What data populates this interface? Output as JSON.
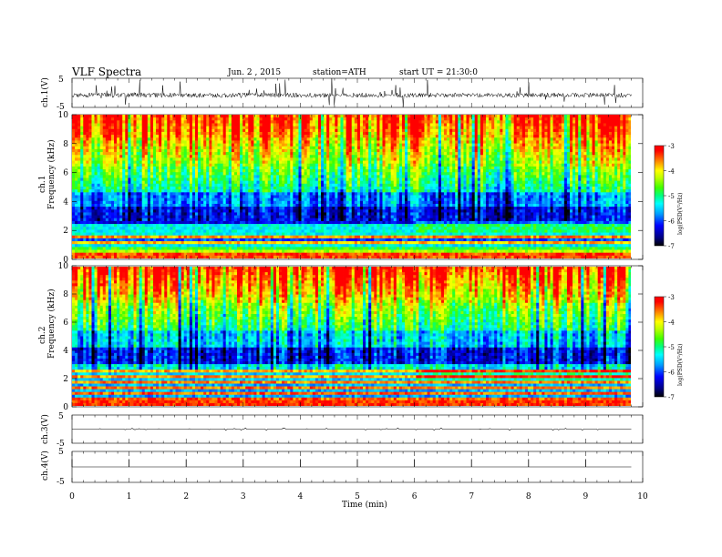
{
  "header": {
    "title": "VLF  Spectra",
    "date": "Jun. 2  , 2015",
    "station": "station=ATH",
    "start": "start  UT =    21:30:0"
  },
  "chart_data": [
    {
      "type": "line",
      "panel": "ch1-waveform",
      "ylabel": "ch.1(V)",
      "ylim": [
        -5,
        5
      ],
      "yticks": [
        "5",
        "-5"
      ],
      "baseline": -0.8,
      "noise_range": [
        -2.5,
        0.8
      ],
      "spike_range": [
        -5,
        5
      ],
      "xlim": [
        0,
        10
      ],
      "trace_end_min": 9.8
    },
    {
      "type": "heatmap",
      "panel": "ch1-spectrogram",
      "ylabel_top": "ch.1",
      "ylabel": "Frequency  (kHz)",
      "ylim": [
        0,
        10
      ],
      "yticks": [
        "0",
        "2",
        "4",
        "6",
        "8",
        "10"
      ],
      "xlim": [
        0,
        10
      ],
      "data_end_min": 9.8,
      "frequency_profile_kHz": [
        {
          "f": 0.5,
          "color": "red-green bands"
        },
        {
          "f": 1.5,
          "color": "cyan-green"
        },
        {
          "f": 2.8,
          "color": "blue"
        },
        {
          "f": 4.0,
          "color": "blue-cyan"
        },
        {
          "f": 6.0,
          "color": "green-yellow"
        },
        {
          "f": 8.0,
          "color": "yellow-orange"
        },
        {
          "f": 9.5,
          "color": "red"
        }
      ],
      "band_shift_at_min": 6.0
    },
    {
      "type": "heatmap",
      "panel": "ch2-spectrogram",
      "ylabel_top": "ch.2",
      "ylabel": "Frequency  (kHz)",
      "ylim": [
        0,
        10
      ],
      "yticks": [
        "0",
        "2",
        "4",
        "6",
        "8",
        "10"
      ],
      "xlim": [
        0,
        10
      ],
      "data_end_min": 9.8,
      "frequency_profile_kHz": [
        {
          "f": 0.5,
          "color": "red-orange bands"
        },
        {
          "f": 2.0,
          "color": "green"
        },
        {
          "f": 3.6,
          "color": "blue"
        },
        {
          "f": 5.0,
          "color": "cyan-green"
        },
        {
          "f": 7.0,
          "color": "green-yellow"
        },
        {
          "f": 9.5,
          "color": "red"
        }
      ],
      "band_shift_at_min": 6.0
    },
    {
      "type": "line",
      "panel": "ch3-waveform",
      "ylabel": "ch.3(V)",
      "ylim": [
        -5,
        5
      ],
      "yticks": [
        "5",
        "-5"
      ],
      "baseline": 0,
      "xlim": [
        0,
        10
      ]
    },
    {
      "type": "line",
      "panel": "ch4-waveform",
      "ylabel": "ch.4(V)",
      "ylim": [
        -5,
        5
      ],
      "yticks": [
        "5",
        "-5"
      ],
      "baseline": 0,
      "xlim": [
        0,
        10
      ],
      "spikes_at_min": [
        0,
        1,
        2,
        3,
        4,
        5,
        6,
        7,
        8,
        9
      ]
    }
  ],
  "xaxis": {
    "label": "Time  (min)",
    "ticks": [
      "0",
      "1",
      "2",
      "3",
      "4",
      "5",
      "6",
      "7",
      "8",
      "9",
      "10"
    ]
  },
  "colorbar": {
    "label": "log(PSD(V²/Hz)",
    "ticks": [
      "-3",
      "-4",
      "-5",
      "-6",
      "-7"
    ],
    "range": [
      -7,
      -3
    ],
    "colors": [
      "#000000",
      "#0000c8",
      "#0050ff",
      "#00c8ff",
      "#00ff96",
      "#50ff00",
      "#dcff00",
      "#ffd200",
      "#ff6400",
      "#ff0000",
      "#ff0000"
    ]
  }
}
